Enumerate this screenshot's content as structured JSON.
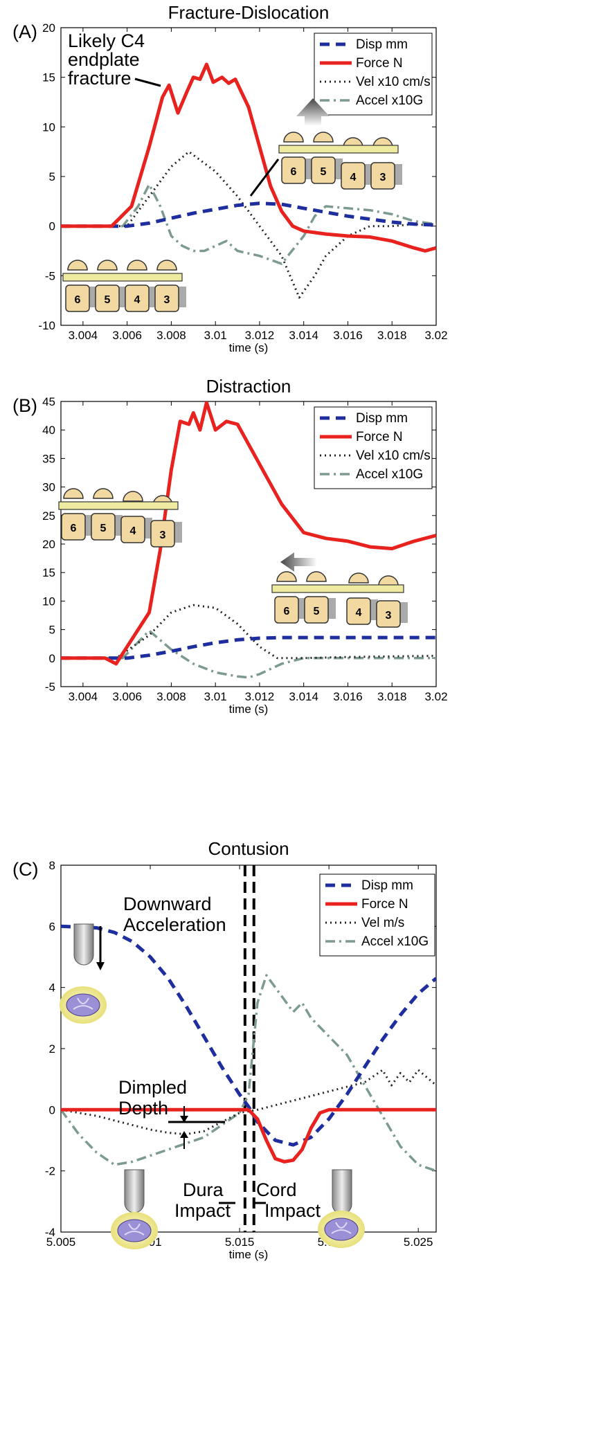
{
  "chart_data": [
    {
      "panel": "(A)",
      "type": "line",
      "title": "Fracture-Dislocation",
      "xlabel": "time (s)",
      "xlim": [
        3.003,
        3.02
      ],
      "ylim": [
        -10,
        20
      ],
      "xticks": [
        3.004,
        3.006,
        3.008,
        3.01,
        3.012,
        3.014,
        3.016,
        3.018,
        3.02
      ],
      "xtick_labels": [
        "3.004",
        "3.006",
        "3.008",
        "3.01",
        "3.012",
        "3.014",
        "3.016",
        "3.018",
        "3.02"
      ],
      "yticks": [
        -10,
        -5,
        0,
        5,
        10,
        15,
        20
      ],
      "ytick_labels": [
        "-10",
        "-5",
        "0",
        "5",
        "10",
        "15",
        "20"
      ],
      "legend": [
        "Disp mm",
        "Force N",
        "Vel x10 cm/s",
        "Accel x10G"
      ],
      "annotation": [
        "Likely C4",
        "endplate",
        "fracture"
      ],
      "vertebrae_labels": [
        "6",
        "5",
        "4",
        "3"
      ],
      "series": [
        {
          "name": "Disp mm",
          "x": [
            3.003,
            3.006,
            3.007,
            3.008,
            3.009,
            3.01,
            3.011,
            3.012,
            3.013,
            3.014,
            3.015,
            3.016,
            3.017,
            3.018,
            3.019,
            3.02
          ],
          "y": [
            0,
            0,
            0.3,
            0.8,
            1.3,
            1.7,
            2.1,
            2.3,
            2.2,
            1.8,
            1.4,
            1.0,
            0.7,
            0.4,
            0.2,
            0.1
          ]
        },
        {
          "name": "Force N",
          "x": [
            3.003,
            3.0053,
            3.0062,
            3.007,
            3.0076,
            3.0079,
            3.0083,
            3.0087,
            3.009,
            3.0093,
            3.0096,
            3.0099,
            3.0103,
            3.0106,
            3.0109,
            3.0115,
            3.012,
            3.0125,
            3.013,
            3.0135,
            3.014,
            3.015,
            3.016,
            3.017,
            3.018,
            3.019,
            3.0195,
            3.02
          ],
          "y": [
            0,
            0,
            2,
            8,
            13,
            14.2,
            11.4,
            13.5,
            15,
            14.8,
            16.3,
            14.5,
            15,
            14.4,
            14.8,
            12,
            8,
            4,
            1.5,
            0,
            -0.5,
            -0.8,
            -1.0,
            -1.1,
            -1.5,
            -2.2,
            -2.5,
            -2.2
          ]
        },
        {
          "name": "Vel x10 cm/s",
          "x": [
            3.003,
            3.0055,
            3.006,
            3.007,
            3.008,
            3.0088,
            3.01,
            3.011,
            3.012,
            3.013,
            3.0138,
            3.0145,
            3.015,
            3.016,
            3.017,
            3.018,
            3.019,
            3.02
          ],
          "y": [
            0,
            0,
            0,
            3,
            6,
            7.5,
            5.5,
            3,
            0,
            -3,
            -7.2,
            -5,
            -3,
            -1,
            0,
            0,
            0.2,
            0
          ]
        },
        {
          "name": "Accel x10G",
          "x": [
            3.003,
            3.0058,
            3.0065,
            3.007,
            3.0075,
            3.008,
            3.0085,
            3.009,
            3.0095,
            3.01,
            3.0105,
            3.011,
            3.012,
            3.013,
            3.014,
            3.0145,
            3.015,
            3.016,
            3.017,
            3.018,
            3.019,
            3.02
          ],
          "y": [
            0,
            0,
            2,
            4.2,
            2,
            -1,
            -2,
            -2.5,
            -2.5,
            -2,
            -1.5,
            -2.5,
            -3,
            -3.8,
            -1,
            1,
            2,
            1.8,
            1.6,
            1.2,
            0.5,
            0.2
          ]
        }
      ]
    },
    {
      "panel": "(B)",
      "type": "line",
      "title": "Distraction",
      "xlabel": "time (s)",
      "xlim": [
        3.003,
        3.02
      ],
      "ylim": [
        -5,
        45
      ],
      "xticks": [
        3.004,
        3.006,
        3.008,
        3.01,
        3.012,
        3.014,
        3.016,
        3.018,
        3.02
      ],
      "xtick_labels": [
        "3.004",
        "3.006",
        "3.008",
        "3.01",
        "3.012",
        "3.014",
        "3.016",
        "3.018",
        "3.02"
      ],
      "yticks": [
        -5,
        0,
        5,
        10,
        15,
        20,
        25,
        30,
        35,
        40,
        45
      ],
      "ytick_labels": [
        "-5",
        "0",
        "5",
        "10",
        "15",
        "20",
        "25",
        "30",
        "35",
        "40",
        "45"
      ],
      "legend": [
        "Disp mm",
        "Force N",
        "Vel x10 cm/s",
        "Accel x10G"
      ],
      "vertebrae_labels": [
        "6",
        "5",
        "4",
        "3"
      ],
      "series": [
        {
          "name": "Disp mm",
          "x": [
            3.003,
            3.006,
            3.007,
            3.008,
            3.009,
            3.01,
            3.011,
            3.012,
            3.013,
            3.014,
            3.016,
            3.018,
            3.02
          ],
          "y": [
            0,
            0,
            0.5,
            1.2,
            2,
            2.7,
            3.2,
            3.5,
            3.6,
            3.6,
            3.6,
            3.6,
            3.6
          ]
        },
        {
          "name": "Force N",
          "x": [
            3.003,
            3.005,
            3.0055,
            3.006,
            3.007,
            3.0075,
            3.008,
            3.0084,
            3.0088,
            3.009,
            3.0093,
            3.0096,
            3.01,
            3.0105,
            3.011,
            3.012,
            3.013,
            3.014,
            3.015,
            3.016,
            3.017,
            3.018,
            3.019,
            3.02
          ],
          "y": [
            0,
            0,
            -1,
            2,
            8,
            19,
            33,
            41.5,
            41,
            43,
            40,
            44.8,
            40,
            41.5,
            41,
            34,
            27,
            22,
            21,
            20.5,
            19.5,
            19.2,
            20.5,
            21.5
          ]
        },
        {
          "name": "Vel x10 cm/s",
          "x": [
            3.003,
            3.0055,
            3.007,
            3.008,
            3.009,
            3.01,
            3.011,
            3.012,
            3.0128,
            3.014,
            3.016,
            3.018,
            3.02
          ],
          "y": [
            0,
            0,
            4,
            8,
            9.3,
            8.8,
            6,
            2,
            0,
            0,
            0.2,
            0.3,
            0.4
          ]
        },
        {
          "name": "Accel x10G",
          "x": [
            3.003,
            3.0058,
            3.007,
            3.008,
            3.009,
            3.01,
            3.011,
            3.0115,
            3.012,
            3.013,
            3.014,
            3.016,
            3.018,
            3.02
          ],
          "y": [
            0,
            0,
            4.8,
            1.5,
            -1,
            -2.5,
            -3.2,
            -3.4,
            -2.8,
            -1,
            0,
            0,
            0,
            0
          ]
        }
      ]
    },
    {
      "panel": "(C)",
      "type": "line",
      "title": "Contusion",
      "xlabel": "time (s)",
      "xlim": [
        5.005,
        5.026
      ],
      "ylim": [
        -4,
        8
      ],
      "xticks": [
        5.005,
        5.01,
        5.015,
        5.02,
        5.025
      ],
      "xtick_labels": [
        "5.005",
        "5.01",
        "5.015",
        "5.02",
        "5.025"
      ],
      "yticks": [
        -4,
        -2,
        0,
        2,
        4,
        6,
        8
      ],
      "ytick_labels": [
        "-4",
        "-2",
        "0",
        "2",
        "4",
        "6",
        "8"
      ],
      "legend": [
        "Disp mm",
        "Force N",
        "Vel m/s",
        "Accel x10G"
      ],
      "vlines": [
        5.0153,
        5.0158
      ],
      "annotations": {
        "downward": [
          "Downward",
          "Acceleration"
        ],
        "dimpled": [
          "Dimpled",
          "Depth"
        ],
        "dura": [
          "Dura",
          "Impact"
        ],
        "cord": [
          "Cord",
          "Impact"
        ]
      },
      "series": [
        {
          "name": "Disp mm",
          "x": [
            5.005,
            5.007,
            5.008,
            5.009,
            5.01,
            5.011,
            5.012,
            5.013,
            5.014,
            5.015,
            5.0155,
            5.016,
            5.017,
            5.018,
            5.019,
            5.02,
            5.021,
            5.022,
            5.023,
            5.024,
            5.025,
            5.026
          ],
          "y": [
            6,
            5.95,
            5.8,
            5.5,
            5.0,
            4.3,
            3.4,
            2.4,
            1.4,
            0.5,
            0.1,
            -0.4,
            -1.0,
            -1.15,
            -0.9,
            -0.3,
            0.5,
            1.4,
            2.3,
            3.1,
            3.8,
            4.3
          ]
        },
        {
          "name": "Force N",
          "x": [
            5.005,
            5.0155,
            5.016,
            5.0165,
            5.017,
            5.0175,
            5.018,
            5.0185,
            5.019,
            5.0195,
            5.02,
            5.026
          ],
          "y": [
            0,
            0,
            -0.3,
            -1.0,
            -1.6,
            -1.7,
            -1.65,
            -1.3,
            -0.6,
            -0.1,
            0,
            0
          ]
        },
        {
          "name": "Vel m/s",
          "x": [
            5.005,
            5.006,
            5.007,
            5.008,
            5.009,
            5.01,
            5.011,
            5.012,
            5.013,
            5.014,
            5.015,
            5.016,
            5.018,
            5.02,
            5.022,
            5.023,
            5.0235,
            5.024,
            5.0245,
            5.025,
            5.026
          ],
          "y": [
            0,
            -0.1,
            -0.2,
            -0.35,
            -0.5,
            -0.65,
            -0.75,
            -0.8,
            -0.7,
            -0.4,
            -0.1,
            0,
            0.3,
            0.6,
            0.9,
            1.3,
            0.8,
            1.2,
            0.9,
            1.3,
            0.8
          ]
        },
        {
          "name": "Accel x10G",
          "x": [
            5.005,
            5.006,
            5.007,
            5.008,
            5.009,
            5.01,
            5.011,
            5.012,
            5.013,
            5.014,
            5.015,
            5.0155,
            5.016,
            5.0165,
            5.017,
            5.0175,
            5.018,
            5.0185,
            5.019,
            5.02,
            5.021,
            5.022,
            5.023,
            5.024,
            5.025,
            5.026
          ],
          "y": [
            0,
            -0.8,
            -1.4,
            -1.8,
            -1.7,
            -1.5,
            -1.3,
            -1.1,
            -0.9,
            -0.5,
            -0.1,
            0.5,
            3.5,
            4.4,
            4.0,
            3.6,
            3.2,
            3.5,
            3.0,
            2.4,
            1.8,
            0.8,
            -0.2,
            -1.2,
            -1.8,
            -2.0
          ]
        }
      ]
    }
  ],
  "styles": {
    "Disp mm": {
      "color": "#1f2e9e",
      "dash": "14,9",
      "width": 5
    },
    "Force N": {
      "color": "#e8231f",
      "dash": "",
      "width": 5
    },
    "Vel": {
      "color": "#222222",
      "dash": "2,5",
      "width": 3
    },
    "Accel x10G": {
      "color": "#7d9a8f",
      "dash": "14,6,3,6",
      "width": 3.5
    }
  }
}
